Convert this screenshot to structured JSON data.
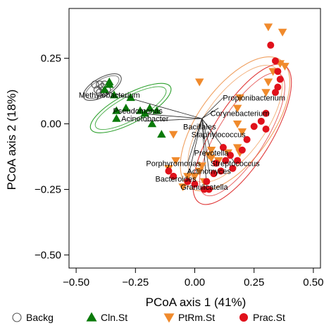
{
  "chart_data": {
    "type": "scatter",
    "xlabel": "PCoA axis 1 (41%)",
    "ylabel": "PCoA axis 2 (18%)",
    "xlim": [
      -0.53,
      0.53
    ],
    "ylim": [
      -0.55,
      0.44
    ],
    "x_ticks": [
      "−0.50",
      "−0.25",
      "0.00",
      "0.25",
      "0.50"
    ],
    "x_tick_values": [
      -0.5,
      -0.25,
      0,
      0.25,
      0.5
    ],
    "y_ticks": [
      "−0.50",
      "−0.25",
      "0.00",
      "0.25"
    ],
    "y_tick_values": [
      -0.5,
      -0.25,
      0,
      0.25
    ],
    "grid": false,
    "legend_position": "bottom",
    "series": [
      {
        "name": "Backg",
        "marker": "open-circle",
        "color": "#555555",
        "ellipse_color": "#555555",
        "points": [
          [
            -0.42,
            0.15
          ],
          [
            -0.41,
            0.13
          ],
          [
            -0.4,
            0.15
          ],
          [
            -0.39,
            0.14
          ],
          [
            -0.38,
            0.15
          ],
          [
            -0.37,
            0.13
          ],
          [
            -0.4,
            0.12
          ],
          [
            -0.38,
            0.12
          ]
        ],
        "ellipse": {
          "cx": -0.39,
          "cy": 0.14,
          "rx": 0.09,
          "ry": 0.035,
          "angle": -30
        }
      },
      {
        "name": "Cln.St",
        "marker": "triangle-up",
        "color": "#0a7a0a",
        "ellipse_color": "#2ca02c",
        "points": [
          [
            -0.36,
            0.15
          ],
          [
            -0.34,
            0.11
          ],
          [
            -0.27,
            0.1
          ],
          [
            -0.33,
            0.05
          ],
          [
            -0.29,
            0.06
          ],
          [
            -0.23,
            0.05
          ],
          [
            -0.19,
            0.06
          ],
          [
            -0.21,
            0.04
          ],
          [
            -0.16,
            0.05
          ],
          [
            -0.18,
            0.0
          ],
          [
            -0.14,
            -0.04
          ],
          [
            -0.33,
            0.02
          ],
          [
            -0.38,
            0.13
          ],
          [
            -0.36,
            0.16
          ]
        ],
        "ellipse": {
          "cx": -0.27,
          "cy": 0.06,
          "rx": 0.19,
          "ry": 0.055,
          "angle": -28
        }
      },
      {
        "name": "PtRm.St",
        "marker": "triangle-down",
        "color": "#f08a2c",
        "ellipse_color": "#f0a060",
        "points": [
          [
            0.31,
            0.37
          ],
          [
            0.37,
            0.35
          ],
          [
            0.38,
            0.22
          ],
          [
            0.36,
            0.23
          ],
          [
            0.33,
            0.2
          ],
          [
            0.31,
            0.16
          ],
          [
            0.3,
            0.12
          ],
          [
            0.19,
            0.1
          ],
          [
            0.18,
            0.06
          ],
          [
            0.18,
            0.0
          ],
          [
            0.2,
            -0.03
          ],
          [
            0.18,
            -0.09
          ],
          [
            0.19,
            -0.11
          ],
          [
            0.14,
            -0.11
          ],
          [
            0.1,
            -0.14
          ],
          [
            0.07,
            -0.13
          ],
          [
            0.06,
            -0.12
          ],
          [
            0.03,
            -0.16
          ],
          [
            0.02,
            -0.18
          ],
          [
            0.0,
            -0.2
          ],
          [
            -0.03,
            -0.2
          ],
          [
            -0.05,
            -0.24
          ],
          [
            -0.08,
            -0.14
          ],
          [
            -0.09,
            -0.04
          ],
          [
            -0.11,
            -0.17
          ],
          [
            0.02,
            0.16
          ],
          [
            0.04,
            -0.22
          ],
          [
            0.07,
            -0.1
          ]
        ],
        "ellipse": {
          "cx": 0.17,
          "cy": 0.0,
          "rx": 0.33,
          "ry": 0.14,
          "angle": -54
        }
      },
      {
        "name": "Prac.St",
        "marker": "filled-circle",
        "color": "#e0111b",
        "ellipse_color": "#e03a3a",
        "points": [
          [
            0.32,
            0.3
          ],
          [
            0.34,
            0.24
          ],
          [
            0.35,
            0.2
          ],
          [
            0.36,
            0.17
          ],
          [
            0.35,
            0.14
          ],
          [
            0.34,
            0.12
          ],
          [
            0.3,
            0.04
          ],
          [
            0.28,
            0.01
          ],
          [
            0.3,
            -0.02
          ],
          [
            0.25,
            -0.01
          ],
          [
            0.22,
            -0.06
          ],
          [
            0.2,
            -0.1
          ],
          [
            0.18,
            -0.14
          ],
          [
            0.16,
            -0.17
          ],
          [
            0.13,
            -0.14
          ],
          [
            0.11,
            -0.18
          ],
          [
            0.09,
            -0.15
          ],
          [
            0.08,
            -0.19
          ],
          [
            0.05,
            -0.22
          ],
          [
            0.06,
            -0.25
          ],
          [
            0.04,
            -0.25
          ],
          [
            0.0,
            -0.23
          ],
          [
            -0.03,
            -0.22
          ],
          [
            -0.09,
            -0.2
          ],
          [
            -0.11,
            -0.18
          ],
          [
            0.15,
            -0.12
          ],
          [
            0.12,
            -0.09
          ]
        ],
        "ellipse": {
          "cx": 0.2,
          "cy": -0.04,
          "rx": 0.34,
          "ry": 0.11,
          "angle": -58
        }
      }
    ],
    "biplot_origin": [
      0.03,
      0.02
    ],
    "biplot_vectors": [
      {
        "label": "Methylobacterium",
        "x": -0.36,
        "y": 0.12,
        "lx": -0.36,
        "ly": 0.11,
        "anchor": "middle"
      },
      {
        "label": "Pseudomonas",
        "x": -0.24,
        "y": 0.04,
        "lx": -0.24,
        "ly": 0.05,
        "anchor": "middle"
      },
      {
        "label": "Acinetobacter",
        "x": -0.21,
        "y": 0.01,
        "lx": -0.21,
        "ly": 0.02,
        "anchor": "middle"
      },
      {
        "label": "Propionibacterium",
        "x": 0.12,
        "y": 0.1,
        "lx": 0.25,
        "ly": 0.1,
        "anchor": "middle"
      },
      {
        "label": "Corynebacterium",
        "x": 0.1,
        "y": 0.06,
        "lx": 0.19,
        "ly": 0.04,
        "anchor": "middle"
      },
      {
        "label": "Bacillales",
        "x": 0.02,
        "y": -0.01,
        "lx": 0.02,
        "ly": -0.01,
        "anchor": "middle"
      },
      {
        "label": "Staphylococcus",
        "x": 0.08,
        "y": -0.04,
        "lx": 0.1,
        "ly": -0.04,
        "anchor": "middle"
      },
      {
        "label": "Prevotella",
        "x": 0.07,
        "y": -0.11,
        "lx": 0.07,
        "ly": -0.11,
        "anchor": "middle"
      },
      {
        "label": "Streptococcus",
        "x": 0.17,
        "y": -0.15,
        "lx": 0.17,
        "ly": -0.15,
        "anchor": "middle"
      },
      {
        "label": "Porphyromonas",
        "x": -0.03,
        "y": -0.15,
        "lx": -0.09,
        "ly": -0.15,
        "anchor": "middle"
      },
      {
        "label": "Actinomyces",
        "x": 0.06,
        "y": -0.18,
        "lx": 0.06,
        "ly": -0.18,
        "anchor": "middle"
      },
      {
        "label": "Bacteroides",
        "x": -0.03,
        "y": -0.21,
        "lx": -0.08,
        "ly": -0.21,
        "anchor": "middle"
      },
      {
        "label": "Granulicatella",
        "x": 0.05,
        "y": -0.24,
        "lx": 0.04,
        "ly": -0.24,
        "anchor": "middle"
      }
    ]
  }
}
